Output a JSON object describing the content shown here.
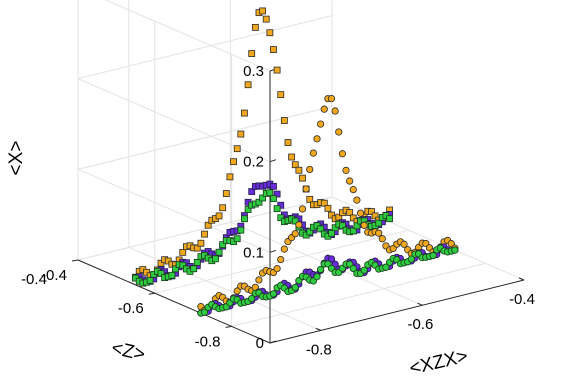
{
  "chart_data": {
    "type": "scatter",
    "projection": "3d",
    "grid": true,
    "legend": "none",
    "title": "",
    "xlabel": "<XZX>",
    "ylabel": "<Z>",
    "zlabel": "<X>",
    "xlim": [
      -0.9,
      -0.4
    ],
    "ylim": [
      -0.9,
      -0.4
    ],
    "zlim": [
      0,
      0.3
    ],
    "x_ticks": [
      "-0.8",
      "-0.6",
      "-0.4"
    ],
    "y_ticks": [
      "-0.8",
      "-0.6",
      "-0.4"
    ],
    "z_ticks": [
      "0",
      "0.1",
      "0.2",
      "0.3"
    ],
    "series": [
      {
        "marker": "square",
        "color": "#f2a81d",
        "edge": "#2b2b2b",
        "peak_z": 0.27,
        "peak_at": -0.65,
        "note_values": "ridge peaking near x=-0.65"
      },
      {
        "marker": "square",
        "color": "#6a2bd9",
        "edge": "#1d1d4a",
        "peak_z": 0.08,
        "peak_at": -0.65
      },
      {
        "marker": "square",
        "color": "#2ecc40",
        "edge": "#1a3a1a",
        "peak_z": 0.065,
        "peak_at": -0.65
      },
      {
        "marker": "circle",
        "color": "#f2a81d",
        "edge": "#2b2b2b",
        "peak_z": 0.2,
        "peak_at": -0.65
      },
      {
        "marker": "circle",
        "color": "#6a2bd9",
        "edge": "#1d1d4a",
        "peak_z": 0.02,
        "peak_at": -0.65
      },
      {
        "marker": "circle",
        "color": "#2ecc40",
        "edge": "#1a3a1a",
        "peak_z": 0.015,
        "peak_at": -0.65
      }
    ]
  }
}
